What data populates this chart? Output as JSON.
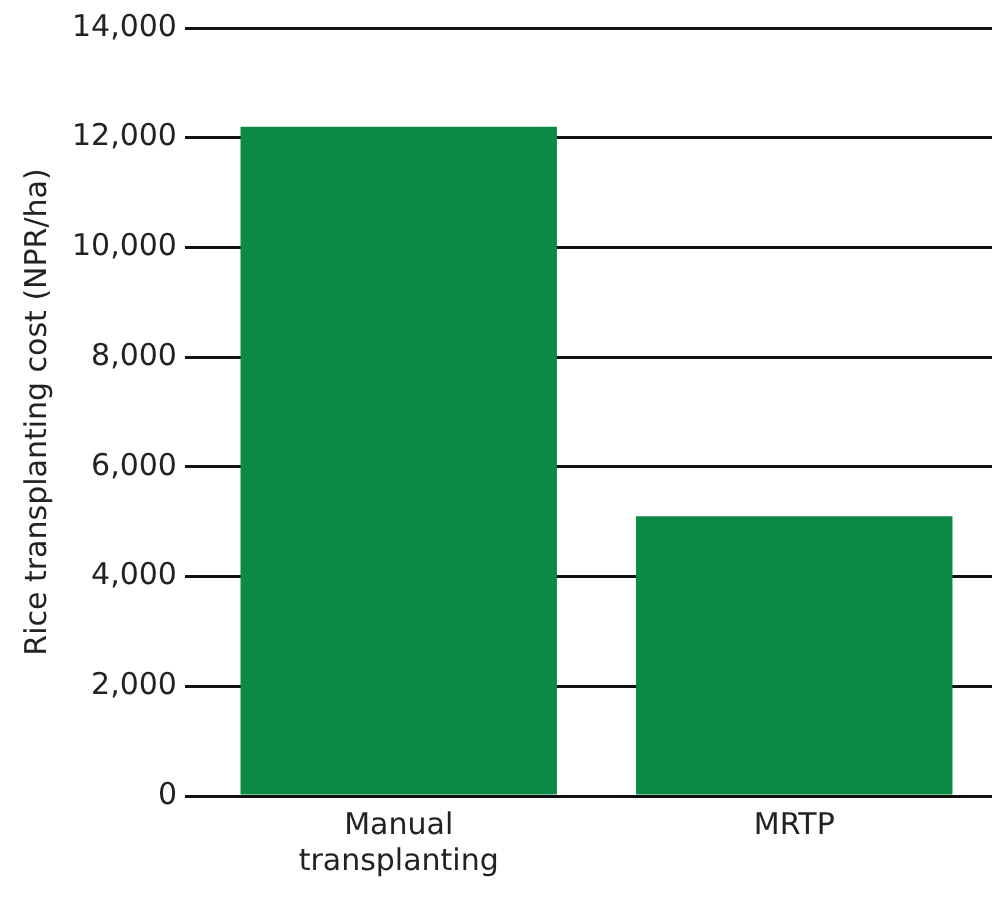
{
  "chart_data": {
    "type": "bar",
    "ylabel": "Rice transplanting cost (NPR/ha)",
    "categories": [
      "Manual transplanting",
      "MRTP"
    ],
    "values": [
      12200,
      5100
    ],
    "color": "#0a8a45",
    "ylim": [
      0,
      14000
    ],
    "yticks": [
      0,
      {
        "value": 2000,
        "label": "2,000"
      },
      {
        "value": 4000,
        "label": "4,000"
      },
      {
        "value": 6000,
        "label": "6,000"
      },
      {
        "value": 8000,
        "label": "8,000"
      },
      {
        "value": 10000,
        "label": "10,000"
      },
      {
        "value": 12000,
        "label": "12,000"
      },
      {
        "value": 14000,
        "label": "14,000"
      }
    ],
    "grid": "y"
  }
}
